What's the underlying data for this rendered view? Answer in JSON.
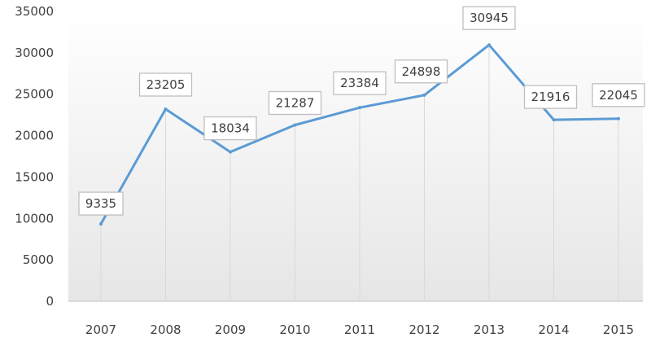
{
  "chart_data": {
    "type": "line",
    "title": "",
    "xlabel": "",
    "ylabel": "",
    "categories": [
      "2007",
      "2008",
      "2009",
      "2010",
      "2011",
      "2012",
      "2013",
      "2014",
      "2015"
    ],
    "series": [
      {
        "values": [
          9335,
          23205,
          18034,
          21287,
          23384,
          24898,
          30945,
          21916,
          22045
        ]
      }
    ],
    "data_labels": [
      "9335",
      "23205",
      "18034",
      "21287",
      "23384",
      "24898",
      "30945",
      "21916",
      "22045"
    ],
    "y_ticks": [
      "0",
      "5000",
      "10000",
      "15000",
      "20000",
      "25000",
      "30000",
      "35000"
    ],
    "ylim": [
      0,
      35000
    ],
    "grid": false,
    "drop_lines": true,
    "legend": "none",
    "colors": {
      "line": "#5b9bd5",
      "plot_gradient_top": "#ffffff",
      "plot_gradient_bottom": "#e6e6e6"
    }
  }
}
